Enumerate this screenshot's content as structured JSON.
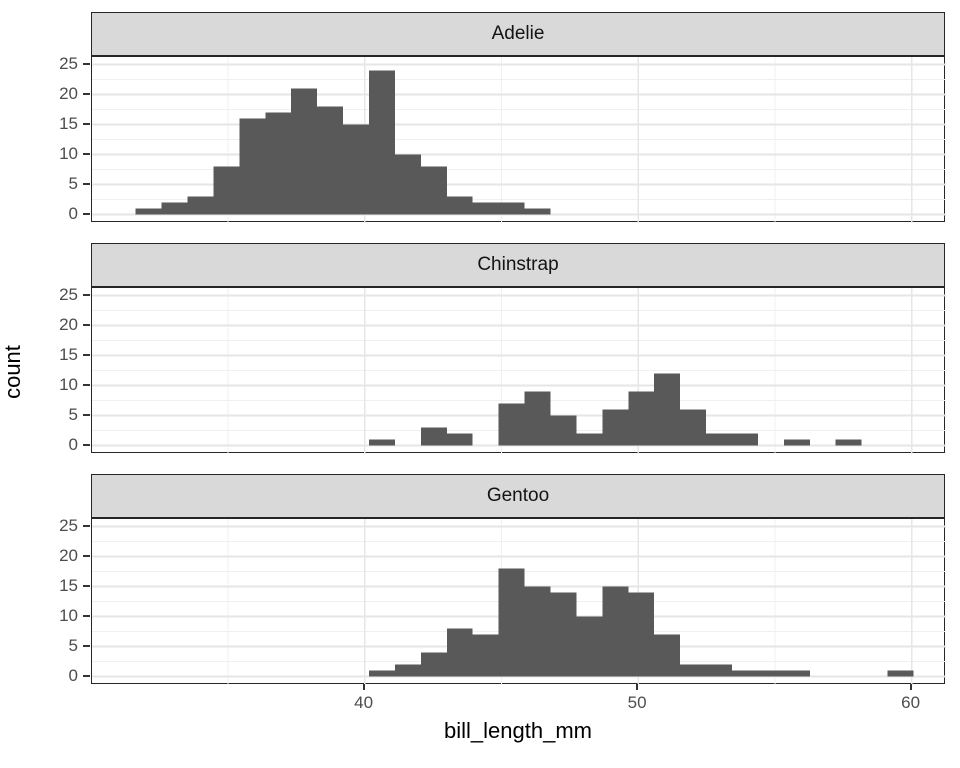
{
  "chart_data": {
    "type": "bar",
    "subtype": "faceted-histogram",
    "title": "",
    "xlabel": "bill_length_mm",
    "ylabel": "count",
    "x_ticks": [
      40,
      50,
      60
    ],
    "y_ticks": [
      0,
      5,
      10,
      15,
      20,
      25
    ],
    "xlim": [
      30.1,
      61.3
    ],
    "ylim": [
      0,
      25
    ],
    "x_minor_gridlines": [
      35,
      45,
      55
    ],
    "y_minor_gridlines": [
      2.5,
      7.5,
      12.5,
      17.5,
      22.5
    ],
    "grid": "on",
    "legend": "none",
    "bin_origin_mm": 31.63,
    "bin_width_mm": 0.948,
    "bar_color": "#595959",
    "strip_background": "#D9D9D9",
    "panel_border_color": "#262626",
    "gridline_color": "#E6E6E6",
    "tick_text_color": "#4D4D4D",
    "facets": [
      {
        "label": "Adelie",
        "bins": [
          [
            0,
            1
          ],
          [
            1,
            2
          ],
          [
            2,
            3
          ],
          [
            3,
            8
          ],
          [
            4,
            16
          ],
          [
            5,
            17
          ],
          [
            6,
            21
          ],
          [
            7,
            18
          ],
          [
            8,
            15
          ],
          [
            9,
            24
          ],
          [
            10,
            10
          ],
          [
            11,
            8
          ],
          [
            12,
            3
          ],
          [
            13,
            2
          ],
          [
            14,
            2
          ],
          [
            15,
            1
          ]
        ]
      },
      {
        "label": "Chinstrap",
        "bins": [
          [
            9,
            1
          ],
          [
            11,
            3
          ],
          [
            12,
            2
          ],
          [
            14,
            7
          ],
          [
            15,
            9
          ],
          [
            16,
            5
          ],
          [
            17,
            2
          ],
          [
            18,
            6
          ],
          [
            19,
            9
          ],
          [
            20,
            12
          ],
          [
            21,
            6
          ],
          [
            22,
            2
          ],
          [
            23,
            2
          ],
          [
            25,
            1
          ],
          [
            27,
            1
          ]
        ]
      },
      {
        "label": "Gentoo",
        "bins": [
          [
            9,
            1
          ],
          [
            10,
            2
          ],
          [
            11,
            4
          ],
          [
            12,
            8
          ],
          [
            13,
            7
          ],
          [
            14,
            18
          ],
          [
            15,
            15
          ],
          [
            16,
            14
          ],
          [
            17,
            10
          ],
          [
            18,
            15
          ],
          [
            19,
            14
          ],
          [
            20,
            7
          ],
          [
            21,
            2
          ],
          [
            22,
            2
          ],
          [
            23,
            1
          ],
          [
            24,
            1
          ],
          [
            25,
            1
          ],
          [
            29,
            1
          ]
        ]
      }
    ]
  }
}
